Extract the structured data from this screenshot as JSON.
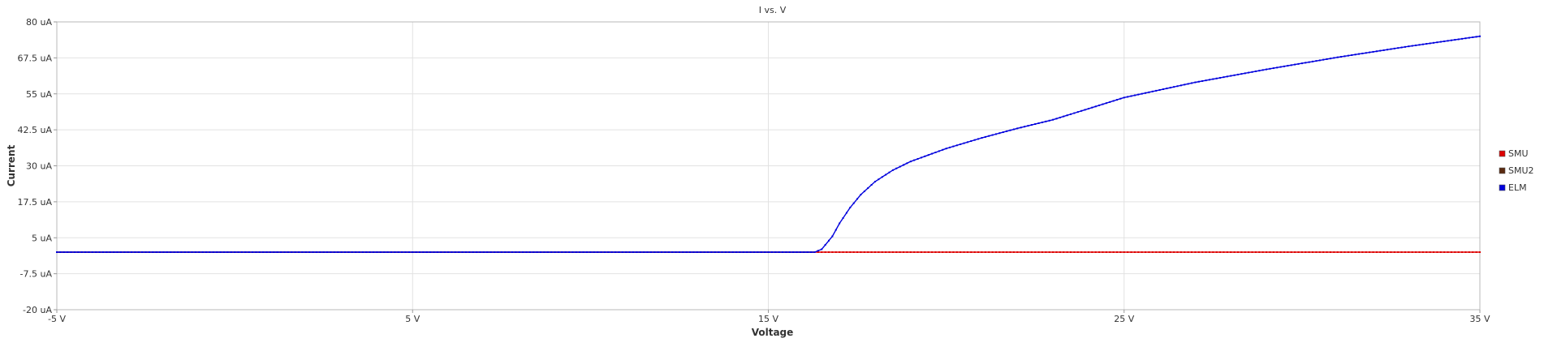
{
  "chart_data": {
    "type": "line",
    "title": "I vs. V",
    "xlabel": "Voltage",
    "ylabel": "Current",
    "xlim": [
      -5,
      35
    ],
    "ylim": [
      -20,
      80
    ],
    "grid": true,
    "legend_position": "right",
    "x_ticks": [
      {
        "value": -5,
        "label": "-5 V"
      },
      {
        "value": 5,
        "label": "5 V"
      },
      {
        "value": 15,
        "label": "15 V"
      },
      {
        "value": 25,
        "label": "25 V"
      },
      {
        "value": 35,
        "label": "35 V"
      }
    ],
    "y_ticks": [
      {
        "value": 80,
        "label": "80 uA"
      },
      {
        "value": 67.5,
        "label": "67.5 uA"
      },
      {
        "value": 55,
        "label": "55 uA"
      },
      {
        "value": 42.5,
        "label": "42.5 uA"
      },
      {
        "value": 30,
        "label": "30 uA"
      },
      {
        "value": 17.5,
        "label": "17.5 uA"
      },
      {
        "value": 5,
        "label": "5 uA"
      },
      {
        "value": -7.5,
        "label": "-7.5 uA"
      },
      {
        "value": -20,
        "label": "-20 uA"
      }
    ],
    "series": [
      {
        "name": "SMU",
        "color": "#dd0000",
        "x": [
          -5,
          16.3,
          20,
          25,
          30,
          35
        ],
        "y": [
          0,
          0,
          0,
          0,
          0,
          0
        ]
      },
      {
        "name": "SMU2",
        "color": "#5a2a10",
        "x": [
          -5,
          16.3
        ],
        "y": [
          0,
          0
        ]
      },
      {
        "name": "ELM",
        "color": "#0000dd",
        "x": [
          -5,
          16.3,
          16.5,
          16.8,
          17.0,
          17.3,
          17.6,
          18.0,
          18.5,
          19.0,
          20.0,
          21.0,
          22.0,
          23.0,
          25.0,
          27.0,
          29.0,
          31.0,
          33.0,
          35.0
        ],
        "y": [
          0,
          0,
          1.0,
          5.5,
          10.0,
          15.5,
          20.0,
          24.5,
          28.5,
          31.5,
          36.0,
          39.7,
          43.0,
          46.0,
          53.7,
          59.0,
          63.5,
          67.7,
          71.5,
          75.0
        ]
      }
    ]
  }
}
